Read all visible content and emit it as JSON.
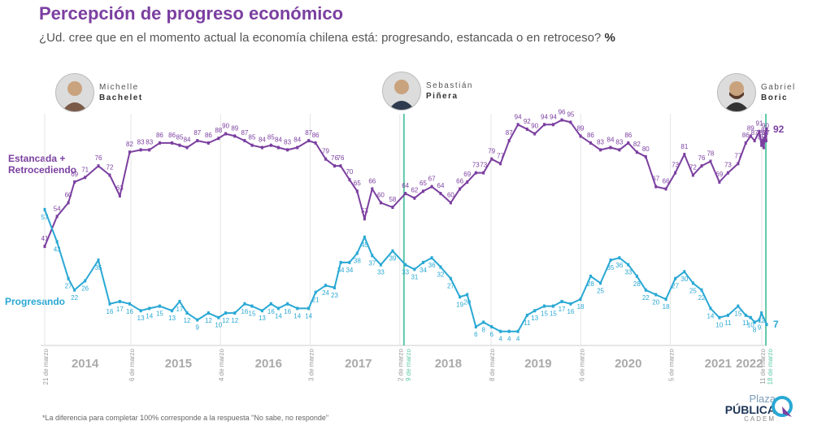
{
  "title": "Percepción de progreso económico",
  "subtitle": "¿Ud. cree que en el momento actual la economía chilena está: progresando, estancada o en retroceso?",
  "subtitle_unit": "%",
  "footer_note": "*La diferencia para completar 100% corresponde a la respuesta \"No sabe, no responde\"",
  "logo": {
    "line1": "Plaza",
    "line2": "PÚBLICA",
    "line3": "CADEM"
  },
  "presidents": [
    {
      "first": "Michelle",
      "last": "Bachelet",
      "icon": "portrait-icon"
    },
    {
      "first": "Sebastián",
      "last": "Piñera",
      "icon": "portrait-icon"
    },
    {
      "first": "Gabriel",
      "last": "Boric",
      "icon": "portrait-icon"
    }
  ],
  "colors": {
    "stagnant": "#7b3fa0",
    "progress": "#29a8d4",
    "grid": "#e5e5e5",
    "marker": "#5ec9a9",
    "year": "#aaaaaa"
  },
  "chart_data": {
    "type": "line",
    "x_unit": "date",
    "xlim": [
      "2014-03-21",
      "2022-03-31"
    ],
    "ylim": [
      0,
      100
    ],
    "years": [
      "2014",
      "2015",
      "2016",
      "2017",
      "2018",
      "2019",
      "2020",
      "2021",
      "2022"
    ],
    "date_markers": [
      {
        "label": "21 de marzo",
        "date": "2014-03-21"
      },
      {
        "label": "6 de marzo",
        "date": "2015-03-06"
      },
      {
        "label": "4 de marzo",
        "date": "2016-03-04"
      },
      {
        "label": "3 de marzo",
        "date": "2017-03-03"
      },
      {
        "label": "2 de marzo",
        "date": "2018-03-02"
      },
      {
        "label": "9 de marzo",
        "date": "2018-03-09",
        "highlight": true
      },
      {
        "label": "8 de marzo",
        "date": "2019-03-08"
      },
      {
        "label": "6 de marzo",
        "date": "2020-03-06"
      },
      {
        "label": "5 de marzo",
        "date": "2021-03-05"
      },
      {
        "label": "11 de marzo",
        "date": "2022-03-11"
      },
      {
        "label": "18 de marzo",
        "date": "2022-03-18",
        "highlight": true
      }
    ],
    "series": [
      {
        "name": "Estancada + Retrocediendo",
        "name_lines": [
          "Estancada +",
          "Retrocediendo"
        ],
        "points": [
          [
            "2014-03-21",
            41
          ],
          [
            "2014-05-10",
            54
          ],
          [
            "2014-06-25",
            60
          ],
          [
            "2014-07-20",
            69
          ],
          [
            "2014-09-01",
            71
          ],
          [
            "2014-10-25",
            76
          ],
          [
            "2014-12-10",
            72
          ],
          [
            "2015-01-20",
            63
          ],
          [
            "2015-03-01",
            82
          ],
          [
            "2015-04-15",
            83
          ],
          [
            "2015-05-20",
            83
          ],
          [
            "2015-07-01",
            86
          ],
          [
            "2015-08-20",
            86
          ],
          [
            "2015-09-20",
            85
          ],
          [
            "2015-10-20",
            84
          ],
          [
            "2015-12-01",
            87
          ],
          [
            "2016-01-15",
            86
          ],
          [
            "2016-02-25",
            88
          ],
          [
            "2016-03-25",
            90
          ],
          [
            "2016-05-01",
            89
          ],
          [
            "2016-06-10",
            87
          ],
          [
            "2016-07-10",
            85
          ],
          [
            "2016-08-20",
            84
          ],
          [
            "2016-09-25",
            85
          ],
          [
            "2016-10-25",
            84
          ],
          [
            "2016-12-01",
            83
          ],
          [
            "2017-01-10",
            84
          ],
          [
            "2017-02-25",
            87
          ],
          [
            "2017-03-25",
            86
          ],
          [
            "2017-05-05",
            79
          ],
          [
            "2017-06-10",
            76
          ],
          [
            "2017-07-05",
            76
          ],
          [
            "2017-08-10",
            70
          ],
          [
            "2017-09-10",
            65
          ],
          [
            "2017-10-10",
            53
          ],
          [
            "2017-11-10",
            66
          ],
          [
            "2017-12-15",
            60
          ],
          [
            "2018-02-01",
            58
          ],
          [
            "2018-03-25",
            64
          ],
          [
            "2018-05-01",
            62
          ],
          [
            "2018-06-05",
            65
          ],
          [
            "2018-07-10",
            67
          ],
          [
            "2018-08-15",
            64
          ],
          [
            "2018-09-25",
            60
          ],
          [
            "2018-11-01",
            66
          ],
          [
            "2018-12-01",
            69
          ],
          [
            "2019-01-05",
            73
          ],
          [
            "2019-02-05",
            73
          ],
          [
            "2019-03-10",
            79
          ],
          [
            "2019-04-15",
            77
          ],
          [
            "2019-05-20",
            87
          ],
          [
            "2019-06-25",
            94
          ],
          [
            "2019-08-01",
            92
          ],
          [
            "2019-09-01",
            90
          ],
          [
            "2019-10-10",
            94
          ],
          [
            "2019-11-15",
            94
          ],
          [
            "2019-12-20",
            96
          ],
          [
            "2020-01-25",
            95
          ],
          [
            "2020-03-05",
            89
          ],
          [
            "2020-04-15",
            86
          ],
          [
            "2020-05-25",
            83
          ],
          [
            "2020-07-05",
            84
          ],
          [
            "2020-08-10",
            83
          ],
          [
            "2020-09-15",
            86
          ],
          [
            "2020-10-20",
            82
          ],
          [
            "2020-11-25",
            80
          ],
          [
            "2021-01-05",
            67
          ],
          [
            "2021-02-15",
            66
          ],
          [
            "2021-03-25",
            73
          ],
          [
            "2021-05-01",
            81
          ],
          [
            "2021-06-05",
            72
          ],
          [
            "2021-07-10",
            76
          ],
          [
            "2021-08-15",
            78
          ],
          [
            "2021-09-20",
            69
          ],
          [
            "2021-10-25",
            73
          ],
          [
            "2021-12-05",
            77
          ],
          [
            "2022-01-05",
            86
          ],
          [
            "2022-01-25",
            89
          ],
          [
            "2022-02-10",
            87
          ],
          [
            "2022-03-01",
            91
          ],
          [
            "2022-03-10",
            85
          ],
          [
            "2022-03-15",
            87
          ],
          [
            "2022-03-19",
            84
          ],
          [
            "2022-03-23",
            88
          ],
          [
            "2022-03-26",
            90
          ],
          [
            "2022-03-29",
            87
          ],
          [
            "2022-03-31",
            92
          ]
        ]
      },
      {
        "name": "Progresando",
        "name_lines": [
          "Progresando"
        ],
        "points": [
          [
            "2014-03-21",
            57
          ],
          [
            "2014-05-10",
            43
          ],
          [
            "2014-06-25",
            27
          ],
          [
            "2014-07-20",
            22
          ],
          [
            "2014-09-01",
            26
          ],
          [
            "2014-10-25",
            35
          ],
          [
            "2014-12-10",
            16
          ],
          [
            "2015-01-20",
            17
          ],
          [
            "2015-03-01",
            16
          ],
          [
            "2015-04-15",
            13
          ],
          [
            "2015-05-20",
            14
          ],
          [
            "2015-07-01",
            15
          ],
          [
            "2015-08-20",
            13
          ],
          [
            "2015-09-20",
            17
          ],
          [
            "2015-10-20",
            12
          ],
          [
            "2015-12-01",
            9
          ],
          [
            "2016-01-15",
            12
          ],
          [
            "2016-02-25",
            10
          ],
          [
            "2016-03-25",
            12
          ],
          [
            "2016-05-01",
            12
          ],
          [
            "2016-06-10",
            16
          ],
          [
            "2016-07-10",
            15
          ],
          [
            "2016-08-20",
            13
          ],
          [
            "2016-09-25",
            16
          ],
          [
            "2016-10-25",
            14
          ],
          [
            "2016-12-01",
            16
          ],
          [
            "2017-01-10",
            14
          ],
          [
            "2017-02-25",
            14
          ],
          [
            "2017-03-25",
            21
          ],
          [
            "2017-05-05",
            24
          ],
          [
            "2017-06-10",
            23
          ],
          [
            "2017-07-05",
            34
          ],
          [
            "2017-08-10",
            34
          ],
          [
            "2017-09-10",
            38
          ],
          [
            "2017-10-10",
            45
          ],
          [
            "2017-11-10",
            37
          ],
          [
            "2017-12-15",
            33
          ],
          [
            "2018-02-01",
            39
          ],
          [
            "2018-03-25",
            33
          ],
          [
            "2018-05-01",
            31
          ],
          [
            "2018-06-05",
            34
          ],
          [
            "2018-07-10",
            36
          ],
          [
            "2018-08-15",
            32
          ],
          [
            "2018-09-25",
            27
          ],
          [
            "2018-11-01",
            19
          ],
          [
            "2018-12-01",
            20
          ],
          [
            "2019-01-05",
            6
          ],
          [
            "2019-02-05",
            8
          ],
          [
            "2019-03-10",
            6
          ],
          [
            "2019-04-15",
            4
          ],
          [
            "2019-05-20",
            4
          ],
          [
            "2019-06-25",
            4
          ],
          [
            "2019-08-01",
            11
          ],
          [
            "2019-09-01",
            13
          ],
          [
            "2019-10-10",
            15
          ],
          [
            "2019-11-15",
            15
          ],
          [
            "2019-12-20",
            17
          ],
          [
            "2020-01-25",
            16
          ],
          [
            "2020-03-05",
            18
          ],
          [
            "2020-04-15",
            28
          ],
          [
            "2020-05-25",
            25
          ],
          [
            "2020-07-05",
            35
          ],
          [
            "2020-08-10",
            36
          ],
          [
            "2020-09-15",
            33
          ],
          [
            "2020-10-20",
            28
          ],
          [
            "2020-11-25",
            22
          ],
          [
            "2021-01-05",
            20
          ],
          [
            "2021-02-15",
            18
          ],
          [
            "2021-03-25",
            27
          ],
          [
            "2021-05-01",
            30
          ],
          [
            "2021-06-05",
            25
          ],
          [
            "2021-07-10",
            22
          ],
          [
            "2021-08-15",
            14
          ],
          [
            "2021-09-20",
            10
          ],
          [
            "2021-10-25",
            11
          ],
          [
            "2021-12-05",
            15
          ],
          [
            "2022-01-05",
            11
          ],
          [
            "2022-01-25",
            10
          ],
          [
            "2022-02-10",
            8
          ],
          [
            "2022-03-01",
            9
          ],
          [
            "2022-03-10",
            12
          ],
          [
            "2022-03-31",
            7
          ]
        ]
      }
    ]
  }
}
